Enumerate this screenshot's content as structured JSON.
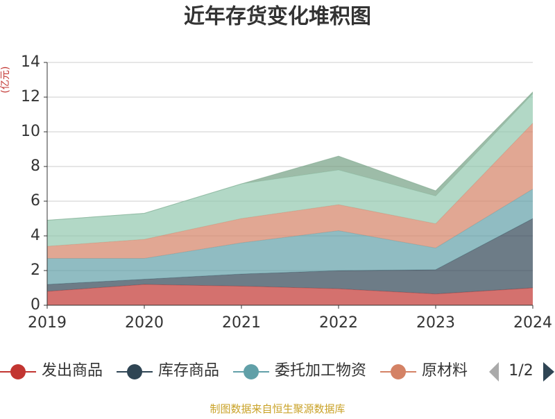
{
  "chart_data": {
    "type": "stacked_area",
    "title": "近年存货变化堆积图",
    "y_label": "(亿元)",
    "categories": [
      "2019",
      "2020",
      "2021",
      "2022",
      "2023",
      "2024"
    ],
    "series": [
      {
        "name": "发出商品",
        "color": "#c23531",
        "values": [
          0.8,
          1.2,
          1.1,
          0.95,
          0.65,
          1.0
        ]
      },
      {
        "name": "库存商品",
        "color": "#2f4554",
        "values": [
          0.4,
          0.3,
          0.7,
          1.05,
          1.4,
          4.0
        ]
      },
      {
        "name": "委托加工物资",
        "color": "#61a0a8",
        "values": [
          1.5,
          1.2,
          1.8,
          2.3,
          1.25,
          1.7
        ]
      },
      {
        "name": "原材料",
        "color": "#d48265",
        "values": [
          0.7,
          1.1,
          1.4,
          1.5,
          1.4,
          3.8
        ]
      },
      {
        "color": "#91c7ae",
        "values": [
          1.5,
          1.5,
          2.0,
          2.0,
          1.6,
          1.7
        ]
      },
      {
        "color": "#749f83",
        "values": [
          0,
          0,
          0,
          0.8,
          0.3,
          0.1
        ]
      }
    ],
    "ylim": [
      0,
      14
    ],
    "yticks": [
      0,
      2,
      4,
      6,
      8,
      10,
      12,
      14
    ],
    "grid": true,
    "legend_page": "1/2",
    "source": "制图数据来自恒生聚源数据库"
  }
}
